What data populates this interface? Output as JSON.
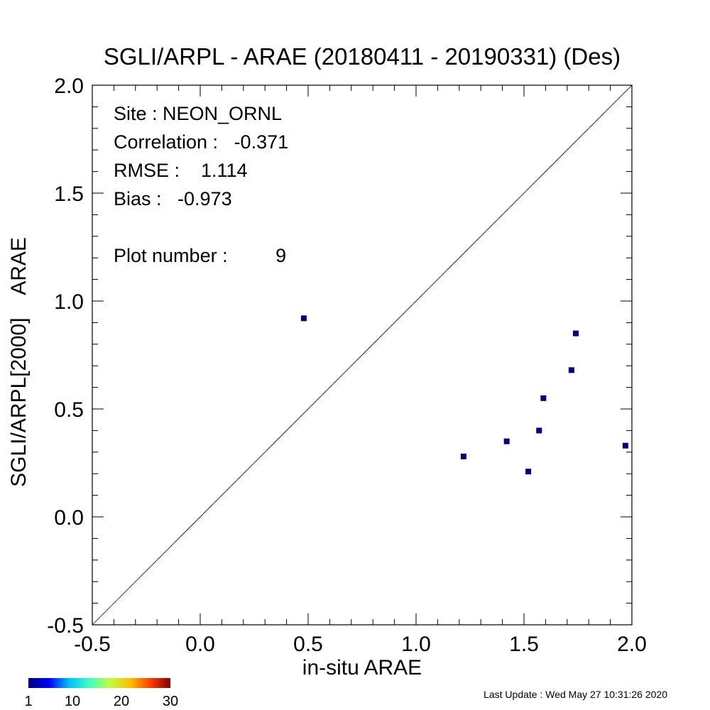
{
  "chart_data": {
    "type": "scatter",
    "title": "SGLI/ARPL - ARAE (20180411 - 20190331) (Des)",
    "xlabel": "in-situ ARAE",
    "ylabel": "SGLI/ARPL[2000]    ARAE",
    "xlim": [
      -0.5,
      2.0
    ],
    "ylim": [
      -0.5,
      2.0
    ],
    "xticks": [
      "-0.5",
      "0.0",
      "0.5",
      "1.0",
      "1.5",
      "2.0"
    ],
    "yticks": [
      "-0.5",
      "0.0",
      "0.5",
      "1.0",
      "1.5",
      "2.0"
    ],
    "reference_line": "1:1",
    "grid": false,
    "marker_color": "#00007f",
    "points": [
      {
        "x": 0.48,
        "y": 0.92
      },
      {
        "x": 1.22,
        "y": 0.28
      },
      {
        "x": 1.42,
        "y": 0.35
      },
      {
        "x": 1.52,
        "y": 0.21
      },
      {
        "x": 1.57,
        "y": 0.4
      },
      {
        "x": 1.59,
        "y": 0.55
      },
      {
        "x": 1.72,
        "y": 0.68
      },
      {
        "x": 1.74,
        "y": 0.85
      },
      {
        "x": 1.97,
        "y": 0.33
      }
    ],
    "stats": [
      "Site : NEON_ORNL",
      "Correlation :   -0.371",
      "RMSE :    1.114",
      "Bias :   -0.973",
      "Plot number :         9"
    ],
    "colorbar": {
      "ticks": [
        "1",
        "10",
        "20",
        "30"
      ],
      "colors": [
        "#00007f",
        "#0000ff",
        "#00bfff",
        "#40ffbf",
        "#bfff40",
        "#ffbf00",
        "#ff4000",
        "#7f0000"
      ]
    }
  },
  "footer": {
    "last_update": "Last Update : Wed May 27 10:31:26 2020"
  }
}
